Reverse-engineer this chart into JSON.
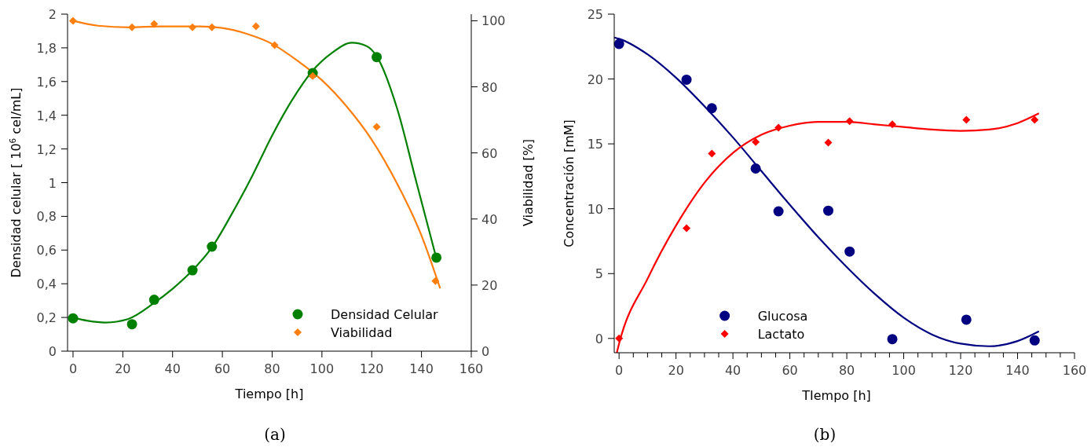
{
  "chart_data": [
    {
      "type": "scatter",
      "xlabel": "Tiempo [h]",
      "ylabel": "Densidad celular [ 10$^{6}$ cel/mL]",
      "y2label": "Viabilidad [%]",
      "annotations": [
        "(a)"
      ],
      "xlim": [
        -2.2,
        160
      ],
      "xticks": [
        0,
        20,
        40,
        60,
        80,
        100,
        120,
        140,
        160
      ],
      "ylim": [
        0,
        2
      ],
      "yticks": [
        0,
        {
          "value": 0.2,
          "label": "0,2"
        },
        {
          "value": 0.4,
          "label": "0,4"
        },
        {
          "value": 0.6,
          "label": "0,6"
        },
        {
          "value": 0.8,
          "label": "0,8"
        },
        1,
        {
          "value": 1.2,
          "label": "1,2"
        },
        {
          "value": 1.4,
          "label": "1,4"
        },
        {
          "value": 1.6,
          "label": "1,6"
        },
        {
          "value": 1.8,
          "label": "1,8"
        },
        2
      ],
      "y2lim": [
        0,
        102
      ],
      "y2ticks": [
        0,
        20,
        40,
        60,
        80,
        100
      ],
      "legend": "bottom right",
      "series": [
        {
          "type": "line",
          "color": "#008000",
          "x": [
            0,
            6,
            13,
            22,
            32,
            40,
            48,
            56,
            64,
            72,
            80,
            88,
            96,
            104,
            112,
            118,
            122,
            130,
            138,
            146
          ],
          "values": [
            0.2,
            0.18,
            0.17,
            0.19,
            0.28,
            0.37,
            0.48,
            0.62,
            0.82,
            1.04,
            1.28,
            1.49,
            1.66,
            1.77,
            1.83,
            1.81,
            1.75,
            1.45,
            1.0,
            0.55
          ]
        },
        {
          "type": "line",
          "axis": "y2",
          "color": "#ff7f0e",
          "x": [
            0,
            10,
            23,
            35,
            50,
            60,
            70,
            80,
            90,
            100,
            110,
            120,
            130,
            140,
            147.5
          ],
          "values": [
            100,
            98.5,
            98,
            98.3,
            98.3,
            97.8,
            96,
            93,
            88,
            82,
            74,
            64,
            51,
            35,
            19
          ]
        },
        {
          "name": "Densidad Celular",
          "color": "#008000",
          "marker": "circle",
          "x": [
            0,
            23.7,
            32.6,
            48,
            55.8,
            96.3,
            122,
            146
          ],
          "values": [
            0.195,
            0.16,
            0.305,
            0.48,
            0.62,
            1.65,
            1.745,
            0.555
          ]
        },
        {
          "name": "Viabilidad",
          "axis": "y2",
          "color": "#ff7f0e",
          "marker": "diamond",
          "x": [
            0,
            23.7,
            32.6,
            48,
            55.8,
            73.5,
            81,
            96.3,
            122,
            145.6
          ],
          "values": [
            100,
            98,
            99,
            98,
            98,
            98.3,
            92.6,
            83.3,
            67.9,
            21.2
          ]
        }
      ]
    },
    {
      "type": "scatter",
      "xlabel": "TIempo [h]",
      "ylabel": "Concentración [mM]",
      "annotations": [
        "(b)"
      ],
      "xlim": [
        -1.7,
        160
      ],
      "xticks": [
        0,
        {
          "value": 5,
          "label": null
        },
        {
          "value": 10,
          "label": null
        },
        {
          "value": 15,
          "label": null
        },
        20,
        {
          "value": 25,
          "label": null
        },
        {
          "value": 30,
          "label": null
        },
        {
          "value": 35,
          "label": null
        },
        40,
        {
          "value": 45,
          "label": null
        },
        {
          "value": 50,
          "label": null
        },
        {
          "value": 55,
          "label": null
        },
        60,
        {
          "value": 65,
          "label": null
        },
        {
          "value": 70,
          "label": null
        },
        {
          "value": 75,
          "label": null
        },
        80,
        {
          "value": 85,
          "label": null
        },
        {
          "value": 90,
          "label": null
        },
        {
          "value": 95,
          "label": null
        },
        100,
        {
          "value": 105,
          "label": null
        },
        {
          "value": 110,
          "label": null
        },
        {
          "value": 115,
          "label": null
        },
        120,
        {
          "value": 125,
          "label": null
        },
        {
          "value": 130,
          "label": null
        },
        {
          "value": 135,
          "label": null
        },
        140,
        {
          "value": 145,
          "label": null
        },
        {
          "value": 150,
          "label": null
        },
        {
          "value": 155,
          "label": null
        },
        160
      ],
      "ylim": [
        -1.1,
        25
      ],
      "yticks": [
        0,
        5,
        10,
        15,
        20,
        25
      ],
      "legend": "bottom left",
      "series": [
        {
          "type": "line",
          "color": "#000080",
          "x": [
            -1.7,
            0,
            10,
            20,
            30,
            40,
            50,
            60,
            70,
            80,
            90,
            100,
            110,
            120,
            130,
            140,
            147.5
          ],
          "values": [
            23.2,
            23.1,
            21.9,
            20.1,
            17.9,
            15.5,
            12.9,
            10.3,
            7.8,
            5.5,
            3.4,
            1.6,
            0.3,
            -0.4,
            -0.6,
            -0.2,
            0.55
          ]
        },
        {
          "type": "line",
          "color": "#ff0000",
          "x": [
            -0.8,
            0,
            10,
            20,
            30,
            40,
            50,
            60,
            70,
            80,
            90,
            100,
            110,
            120,
            130,
            140,
            147.5
          ],
          "values": [
            -1.1,
            -0.4,
            4.6,
            8.7,
            12.0,
            14.3,
            15.7,
            16.4,
            16.7,
            16.7,
            16.5,
            16.3,
            16.1,
            16.0,
            16.1,
            16.6,
            17.35
          ]
        },
        {
          "name": "Glucosa",
          "color": "#000080",
          "marker": "circle",
          "x": [
            0,
            23.7,
            32.6,
            48,
            56,
            73.5,
            81,
            96,
            122,
            146
          ],
          "values": [
            22.7,
            19.95,
            17.75,
            13.1,
            9.8,
            9.85,
            6.7,
            -0.05,
            1.45,
            -0.15
          ]
        },
        {
          "name": "Lactato",
          "color": "#ff0000",
          "marker": "diamond",
          "x": [
            0,
            23.7,
            32.6,
            48,
            56,
            73.5,
            81,
            96,
            122,
            146
          ],
          "values": [
            0,
            8.5,
            14.25,
            15.15,
            16.25,
            15.1,
            16.75,
            16.5,
            16.85,
            16.85
          ]
        }
      ]
    }
  ]
}
